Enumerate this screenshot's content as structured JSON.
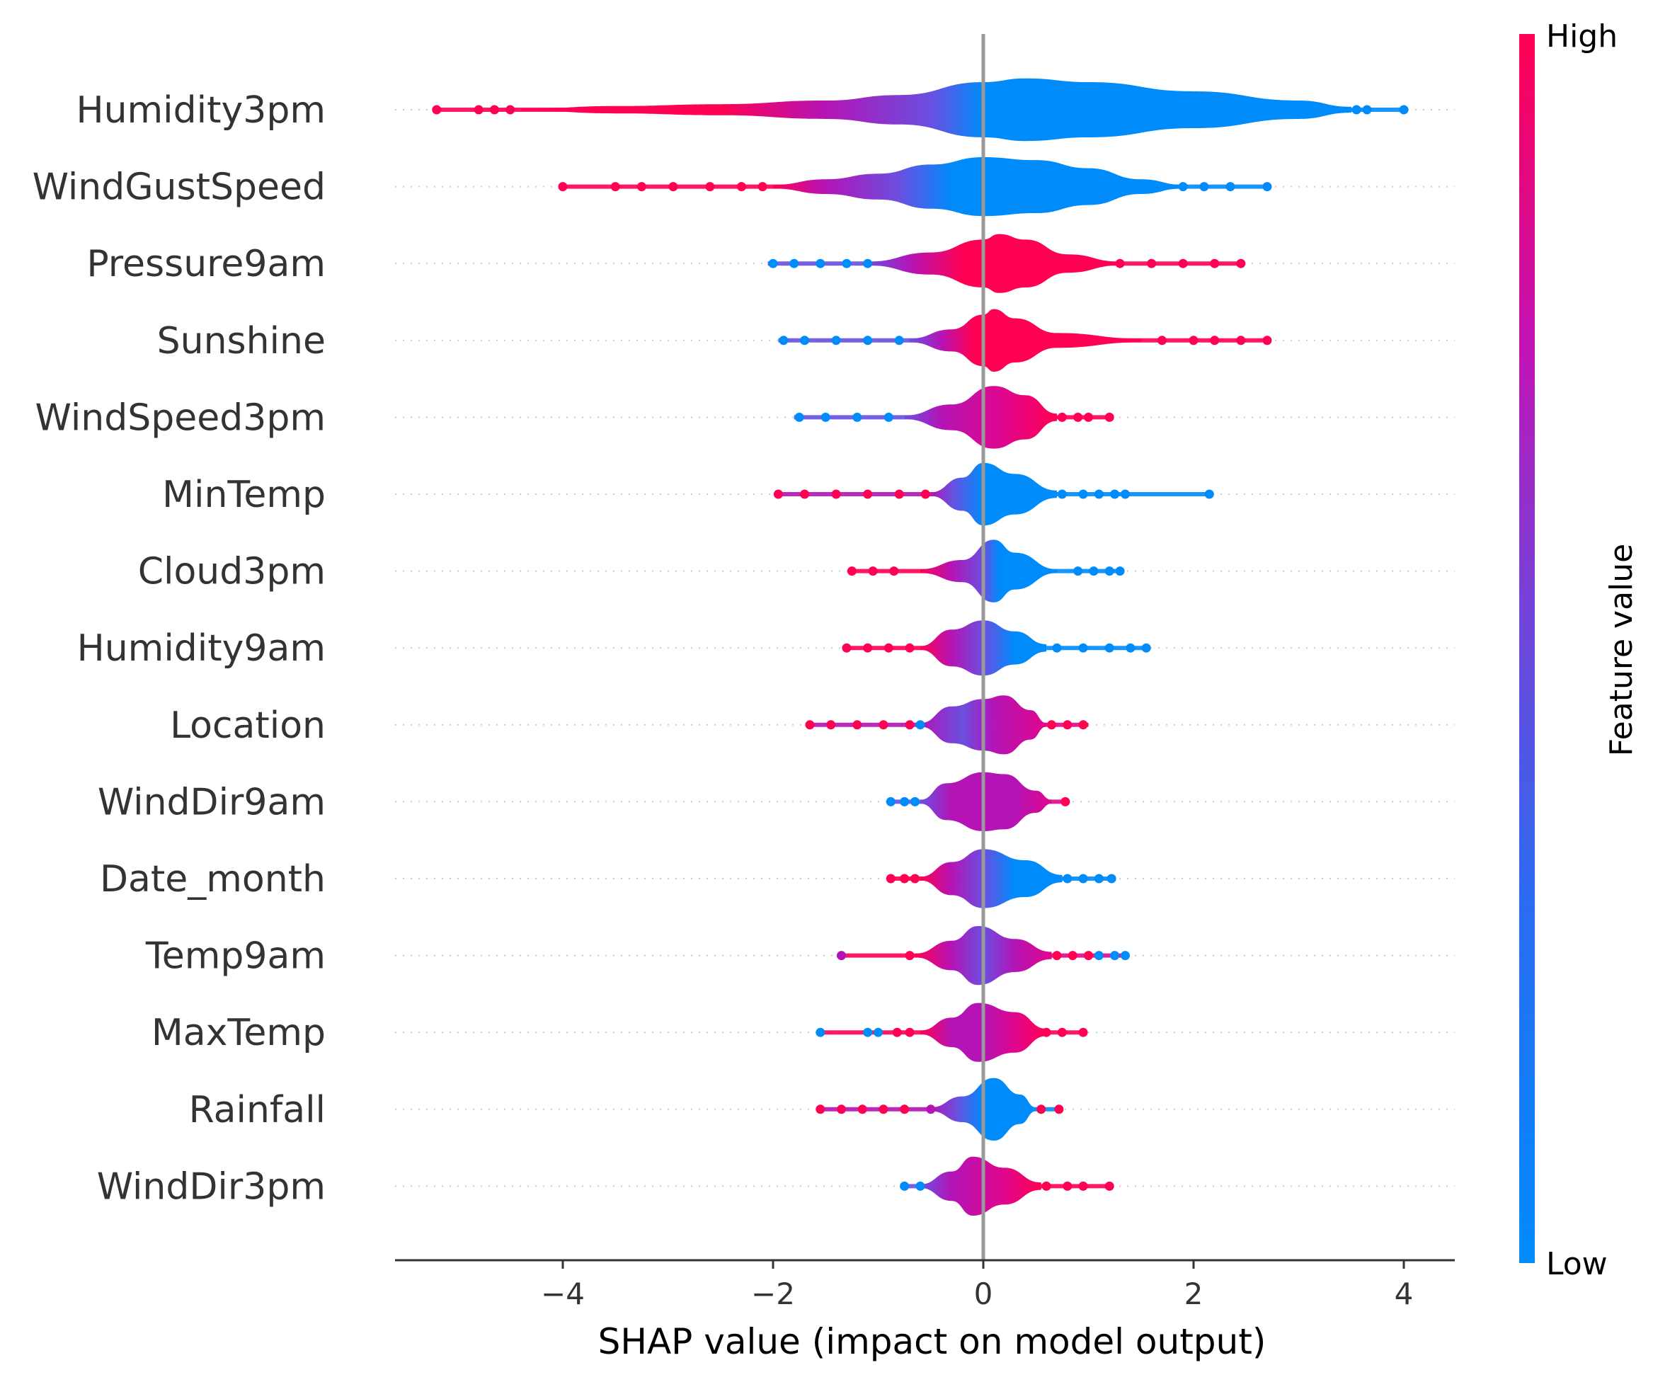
{
  "chart_data": {
    "type": "violin",
    "xlabel": "SHAP value (impact on model output)",
    "ylabel": "",
    "xlim": [
      -5.6,
      4.5
    ],
    "xticks": [
      -4,
      -2,
      0,
      2,
      4
    ],
    "xtick_labels": [
      "−4",
      "−2",
      "0",
      "2",
      "4"
    ],
    "colorbar": {
      "label": "Feature value",
      "high_label": "High",
      "low_label": "Low",
      "low_color": "#008bfb",
      "high_color": "#ff0052"
    },
    "features": [
      {
        "name": "Humidity3pm",
        "min": -5.2,
        "max": 4.0,
        "points": [
          [
            -5.2,
            "h"
          ],
          [
            -4.8,
            "h"
          ],
          [
            -4.65,
            "h"
          ],
          [
            -4.5,
            "h"
          ],
          [
            3.55,
            "l"
          ],
          [
            3.65,
            "l"
          ],
          [
            4.0,
            "l"
          ]
        ],
        "density": [
          [
            -4.4,
            0.02
          ],
          [
            -3.5,
            0.1
          ],
          [
            -2.5,
            0.15
          ],
          [
            -1.5,
            0.25
          ],
          [
            -0.8,
            0.4
          ],
          [
            0,
            0.75
          ],
          [
            0.4,
            0.85
          ],
          [
            1.0,
            0.75
          ],
          [
            2.0,
            0.5
          ],
          [
            3.0,
            0.25
          ],
          [
            3.5,
            0.08
          ]
        ],
        "gradient": [
          [
            -4.4,
            "h"
          ],
          [
            -2.5,
            "h"
          ],
          [
            -1.5,
            "m"
          ],
          [
            -0.5,
            "ml"
          ],
          [
            0,
            "l"
          ],
          [
            3.5,
            "l"
          ]
        ]
      },
      {
        "name": "WindGustSpeed",
        "min": -4.0,
        "max": 2.7,
        "points": [
          [
            -4.0,
            "h"
          ],
          [
            -3.5,
            "h"
          ],
          [
            -3.25,
            "h"
          ],
          [
            -2.95,
            "h"
          ],
          [
            -2.6,
            "h"
          ],
          [
            -2.3,
            "h"
          ],
          [
            -2.1,
            "h"
          ],
          [
            1.9,
            "l"
          ],
          [
            2.1,
            "l"
          ],
          [
            2.35,
            "l"
          ],
          [
            2.7,
            "l"
          ]
        ],
        "density": [
          [
            -2.0,
            0.05
          ],
          [
            -1.5,
            0.2
          ],
          [
            -1.0,
            0.35
          ],
          [
            -0.5,
            0.6
          ],
          [
            0,
            0.8
          ],
          [
            0.5,
            0.72
          ],
          [
            1.0,
            0.5
          ],
          [
            1.5,
            0.2
          ],
          [
            1.9,
            0.05
          ]
        ],
        "gradient": [
          [
            -2.0,
            "h"
          ],
          [
            -1.5,
            "m"
          ],
          [
            -0.8,
            "ml"
          ],
          [
            -0.3,
            "l"
          ],
          [
            1.9,
            "l"
          ]
        ]
      },
      {
        "name": "Pressure9am",
        "min": -2.05,
        "max": 2.45,
        "points": [
          [
            -2.0,
            "l"
          ],
          [
            -1.8,
            "l"
          ],
          [
            -1.55,
            "l"
          ],
          [
            -1.3,
            "l"
          ],
          [
            -1.1,
            "l"
          ],
          [
            1.3,
            "h"
          ],
          [
            1.6,
            "h"
          ],
          [
            1.9,
            "h"
          ],
          [
            2.2,
            "h"
          ],
          [
            2.45,
            "h"
          ]
        ],
        "density": [
          [
            -1.1,
            0.05
          ],
          [
            -0.5,
            0.3
          ],
          [
            0,
            0.65
          ],
          [
            0.15,
            0.8
          ],
          [
            0.4,
            0.65
          ],
          [
            0.8,
            0.25
          ],
          [
            1.3,
            0.05
          ]
        ],
        "gradient": [
          [
            -1.1,
            "ml"
          ],
          [
            -0.7,
            "m"
          ],
          [
            -0.2,
            "h"
          ],
          [
            1.3,
            "h"
          ]
        ]
      },
      {
        "name": "Sunshine",
        "min": -1.95,
        "max": 2.7,
        "points": [
          [
            -1.9,
            "l"
          ],
          [
            -1.7,
            "l"
          ],
          [
            -1.4,
            "l"
          ],
          [
            -1.1,
            "l"
          ],
          [
            -0.8,
            "l"
          ],
          [
            1.7,
            "h"
          ],
          [
            2.0,
            "h"
          ],
          [
            2.2,
            "h"
          ],
          [
            2.45,
            "h"
          ],
          [
            2.7,
            "h"
          ]
        ],
        "density": [
          [
            -0.7,
            0.05
          ],
          [
            -0.3,
            0.3
          ],
          [
            0,
            0.7
          ],
          [
            0.1,
            0.85
          ],
          [
            0.3,
            0.6
          ],
          [
            0.7,
            0.2
          ],
          [
            1.5,
            0.05
          ]
        ],
        "gradient": [
          [
            -0.7,
            "ml"
          ],
          [
            -0.4,
            "m"
          ],
          [
            -0.1,
            "h"
          ],
          [
            1.5,
            "h"
          ]
        ]
      },
      {
        "name": "WindSpeed3pm",
        "min": -1.8,
        "max": 1.2,
        "points": [
          [
            -1.75,
            "l"
          ],
          [
            -1.5,
            "l"
          ],
          [
            -1.2,
            "l"
          ],
          [
            -0.9,
            "l"
          ],
          [
            0.75,
            "h"
          ],
          [
            0.9,
            "h"
          ],
          [
            1.0,
            "h"
          ],
          [
            1.2,
            "h"
          ]
        ],
        "density": [
          [
            -0.75,
            0.05
          ],
          [
            -0.3,
            0.35
          ],
          [
            0.1,
            0.85
          ],
          [
            0.4,
            0.6
          ],
          [
            0.7,
            0.1
          ]
        ],
        "gradient": [
          [
            -0.75,
            "ml"
          ],
          [
            -0.4,
            "m"
          ],
          [
            0.2,
            "mh"
          ],
          [
            0.7,
            "h"
          ]
        ]
      },
      {
        "name": "MinTemp",
        "min": -1.95,
        "max": 2.15,
        "points": [
          [
            -1.95,
            "h"
          ],
          [
            -1.7,
            "h"
          ],
          [
            -1.4,
            "h"
          ],
          [
            -1.1,
            "h"
          ],
          [
            -0.8,
            "h"
          ],
          [
            -0.55,
            "h"
          ],
          [
            0.75,
            "l"
          ],
          [
            0.95,
            "l"
          ],
          [
            1.1,
            "l"
          ],
          [
            1.25,
            "l"
          ],
          [
            1.35,
            "l"
          ],
          [
            2.15,
            "l"
          ]
        ],
        "density": [
          [
            -0.5,
            0.05
          ],
          [
            -0.2,
            0.45
          ],
          [
            0,
            0.85
          ],
          [
            0.3,
            0.55
          ],
          [
            0.7,
            0.1
          ]
        ],
        "gradient": [
          [
            -0.5,
            "m"
          ],
          [
            -0.3,
            "ml"
          ],
          [
            0,
            "l"
          ],
          [
            0.7,
            "l"
          ]
        ]
      },
      {
        "name": "Cloud3pm",
        "min": -1.25,
        "max": 1.3,
        "points": [
          [
            -1.25,
            "h"
          ],
          [
            -1.05,
            "h"
          ],
          [
            -0.85,
            "h"
          ],
          [
            0.9,
            "l"
          ],
          [
            1.05,
            "l"
          ],
          [
            1.2,
            "l"
          ],
          [
            1.3,
            "l"
          ]
        ],
        "density": [
          [
            -0.6,
            0.05
          ],
          [
            -0.2,
            0.3
          ],
          [
            0.1,
            0.85
          ],
          [
            0.3,
            0.5
          ],
          [
            0.7,
            0.05
          ]
        ],
        "gradient": [
          [
            -0.6,
            "h"
          ],
          [
            -0.3,
            "m"
          ],
          [
            0,
            "ml"
          ],
          [
            0.15,
            "l"
          ],
          [
            0.7,
            "l"
          ]
        ]
      },
      {
        "name": "Humidity9am",
        "min": -1.3,
        "max": 1.55,
        "points": [
          [
            -1.3,
            "h"
          ],
          [
            -1.1,
            "h"
          ],
          [
            -0.9,
            "h"
          ],
          [
            -0.7,
            "h"
          ],
          [
            0.7,
            "l"
          ],
          [
            0.95,
            "l"
          ],
          [
            1.2,
            "l"
          ],
          [
            1.4,
            "l"
          ],
          [
            1.55,
            "l"
          ]
        ],
        "density": [
          [
            -0.6,
            0.05
          ],
          [
            -0.3,
            0.5
          ],
          [
            0,
            0.75
          ],
          [
            0.3,
            0.45
          ],
          [
            0.6,
            0.1
          ]
        ],
        "gradient": [
          [
            -0.6,
            "h"
          ],
          [
            -0.3,
            "m"
          ],
          [
            0,
            "ml"
          ],
          [
            0.3,
            "l"
          ],
          [
            0.6,
            "l"
          ]
        ]
      },
      {
        "name": "Location",
        "min": -1.65,
        "max": 1.0,
        "points": [
          [
            -1.65,
            "h"
          ],
          [
            -1.45,
            "h"
          ],
          [
            -1.2,
            "h"
          ],
          [
            -0.95,
            "h"
          ],
          [
            -0.7,
            "h"
          ],
          [
            -0.6,
            "l"
          ],
          [
            0.65,
            "h"
          ],
          [
            0.8,
            "h"
          ],
          [
            0.95,
            "h"
          ]
        ],
        "density": [
          [
            -0.6,
            0.05
          ],
          [
            -0.3,
            0.5
          ],
          [
            0,
            0.7
          ],
          [
            0.2,
            0.8
          ],
          [
            0.45,
            0.4
          ],
          [
            0.6,
            0.05
          ]
        ],
        "gradient": [
          [
            -0.6,
            "m"
          ],
          [
            -0.2,
            "ml"
          ],
          [
            0.1,
            "m"
          ],
          [
            0.6,
            "mh"
          ]
        ]
      },
      {
        "name": "WindDir9am",
        "min": -0.9,
        "max": 0.78,
        "points": [
          [
            -0.88,
            "l"
          ],
          [
            -0.75,
            "l"
          ],
          [
            -0.65,
            "l"
          ],
          [
            0.78,
            "h"
          ]
        ],
        "density": [
          [
            -0.6,
            0.05
          ],
          [
            -0.35,
            0.5
          ],
          [
            0,
            0.8
          ],
          [
            0.2,
            0.75
          ],
          [
            0.5,
            0.3
          ],
          [
            0.65,
            0.05
          ]
        ],
        "gradient": [
          [
            -0.6,
            "ml"
          ],
          [
            -0.3,
            "m"
          ],
          [
            0.3,
            "m"
          ],
          [
            0.65,
            "mh"
          ]
        ]
      },
      {
        "name": "Date_month",
        "min": -0.88,
        "max": 1.22,
        "points": [
          [
            -0.88,
            "h"
          ],
          [
            -0.75,
            "h"
          ],
          [
            -0.65,
            "h"
          ],
          [
            0.8,
            "l"
          ],
          [
            0.95,
            "l"
          ],
          [
            1.1,
            "l"
          ],
          [
            1.22,
            "l"
          ]
        ],
        "density": [
          [
            -0.6,
            0.05
          ],
          [
            -0.3,
            0.45
          ],
          [
            0,
            0.8
          ],
          [
            0.4,
            0.5
          ],
          [
            0.75,
            0.1
          ]
        ],
        "gradient": [
          [
            -0.6,
            "h"
          ],
          [
            -0.3,
            "m"
          ],
          [
            0,
            "ml"
          ],
          [
            0.3,
            "l"
          ],
          [
            0.75,
            "l"
          ]
        ]
      },
      {
        "name": "Temp9am",
        "min": -1.35,
        "max": 1.35,
        "points": [
          [
            -1.35,
            "m"
          ],
          [
            -0.7,
            "h"
          ],
          [
            0.7,
            "h"
          ],
          [
            0.85,
            "h"
          ],
          [
            1.0,
            "h"
          ],
          [
            1.1,
            "l"
          ],
          [
            1.25,
            "l"
          ],
          [
            1.35,
            "l"
          ]
        ],
        "density": [
          [
            -0.65,
            0.05
          ],
          [
            -0.3,
            0.4
          ],
          [
            -0.05,
            0.8
          ],
          [
            0.3,
            0.45
          ],
          [
            0.65,
            0.1
          ]
        ],
        "gradient": [
          [
            -0.65,
            "h"
          ],
          [
            -0.3,
            "m"
          ],
          [
            0,
            "ml"
          ],
          [
            0.3,
            "m"
          ],
          [
            0.65,
            "mh"
          ]
        ]
      },
      {
        "name": "MaxTemp",
        "min": -1.55,
        "max": 0.95,
        "points": [
          [
            -1.55,
            "l"
          ],
          [
            -1.1,
            "l"
          ],
          [
            -1.0,
            "l"
          ],
          [
            -0.82,
            "h"
          ],
          [
            -0.7,
            "h"
          ],
          [
            0.6,
            "h"
          ],
          [
            0.75,
            "h"
          ],
          [
            0.95,
            "h"
          ]
        ],
        "density": [
          [
            -0.6,
            0.05
          ],
          [
            -0.3,
            0.4
          ],
          [
            -0.05,
            0.8
          ],
          [
            0.3,
            0.55
          ],
          [
            0.6,
            0.1
          ]
        ],
        "gradient": [
          [
            -0.6,
            "h"
          ],
          [
            -0.3,
            "m"
          ],
          [
            0,
            "m"
          ],
          [
            0.3,
            "mh"
          ],
          [
            0.6,
            "h"
          ]
        ]
      },
      {
        "name": "Rainfall",
        "min": -1.55,
        "max": 0.72,
        "points": [
          [
            -1.55,
            "h"
          ],
          [
            -1.35,
            "h"
          ],
          [
            -1.15,
            "h"
          ],
          [
            -0.95,
            "h"
          ],
          [
            -0.75,
            "h"
          ],
          [
            -0.5,
            "m"
          ],
          [
            0.55,
            "h"
          ],
          [
            0.72,
            "h"
          ]
        ],
        "density": [
          [
            -0.5,
            0.05
          ],
          [
            -0.2,
            0.35
          ],
          [
            0.1,
            0.85
          ],
          [
            0.35,
            0.4
          ],
          [
            0.5,
            0.05
          ]
        ],
        "gradient": [
          [
            -0.5,
            "m"
          ],
          [
            -0.25,
            "ml"
          ],
          [
            0,
            "l"
          ],
          [
            0.5,
            "l"
          ]
        ]
      },
      {
        "name": "WindDir3pm",
        "min": -0.75,
        "max": 1.2,
        "points": [
          [
            -0.75,
            "l"
          ],
          [
            -0.6,
            "l"
          ],
          [
            0.6,
            "h"
          ],
          [
            0.8,
            "h"
          ],
          [
            0.95,
            "h"
          ],
          [
            1.2,
            "h"
          ]
        ],
        "density": [
          [
            -0.6,
            0.05
          ],
          [
            -0.3,
            0.4
          ],
          [
            -0.1,
            0.8
          ],
          [
            0.2,
            0.5
          ],
          [
            0.55,
            0.1
          ]
        ],
        "gradient": [
          [
            -0.6,
            "ml"
          ],
          [
            -0.3,
            "m"
          ],
          [
            0.2,
            "mh"
          ],
          [
            0.55,
            "h"
          ]
        ]
      }
    ]
  }
}
